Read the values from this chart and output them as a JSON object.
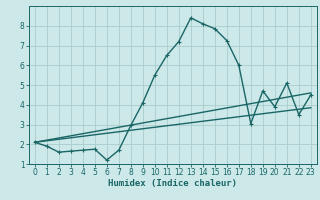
{
  "title": "",
  "xlabel": "Humidex (Indice chaleur)",
  "ylabel": "",
  "bg_color": "#cce8e8",
  "grid_color": "#aacccc",
  "line_color": "#1a6666",
  "xlim": [
    -0.5,
    23.5
  ],
  "ylim": [
    1,
    9
  ],
  "yticks": [
    1,
    2,
    3,
    4,
    5,
    6,
    7,
    8
  ],
  "xticks": [
    0,
    1,
    2,
    3,
    4,
    5,
    6,
    7,
    8,
    9,
    10,
    11,
    12,
    13,
    14,
    15,
    16,
    17,
    18,
    19,
    20,
    21,
    22,
    23
  ],
  "curve1_x": [
    0,
    1,
    2,
    3,
    4,
    5,
    6,
    7,
    8,
    9,
    10,
    11,
    12,
    13,
    14,
    15,
    16,
    17,
    18,
    19,
    20,
    21,
    22,
    23
  ],
  "curve1_y": [
    2.1,
    1.9,
    1.6,
    1.65,
    1.7,
    1.75,
    1.2,
    1.7,
    2.95,
    4.1,
    5.5,
    6.5,
    7.2,
    8.4,
    8.1,
    7.85,
    7.25,
    6.0,
    3.05,
    4.7,
    3.9,
    5.1,
    3.5,
    4.5
  ],
  "curve2_x": [
    0,
    23
  ],
  "curve2_y": [
    2.1,
    3.85
  ],
  "curve3_x": [
    0,
    23
  ],
  "curve3_y": [
    2.1,
    4.6
  ],
  "marker_size": 2.5,
  "line_width": 1.0
}
